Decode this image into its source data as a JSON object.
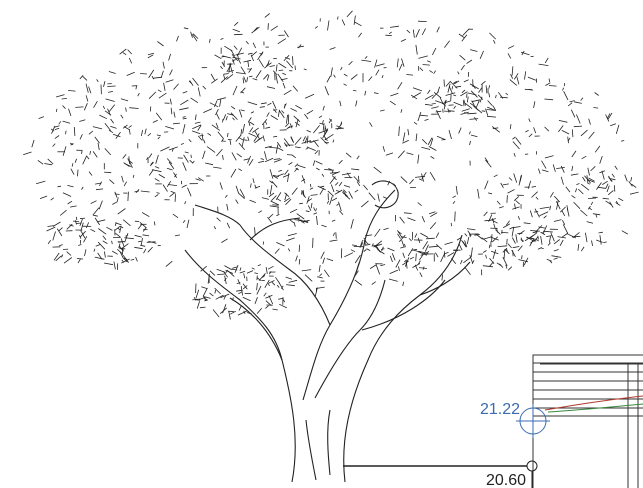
{
  "annotations": {
    "upper_level": "21.22",
    "lower_level": "20.60"
  }
}
